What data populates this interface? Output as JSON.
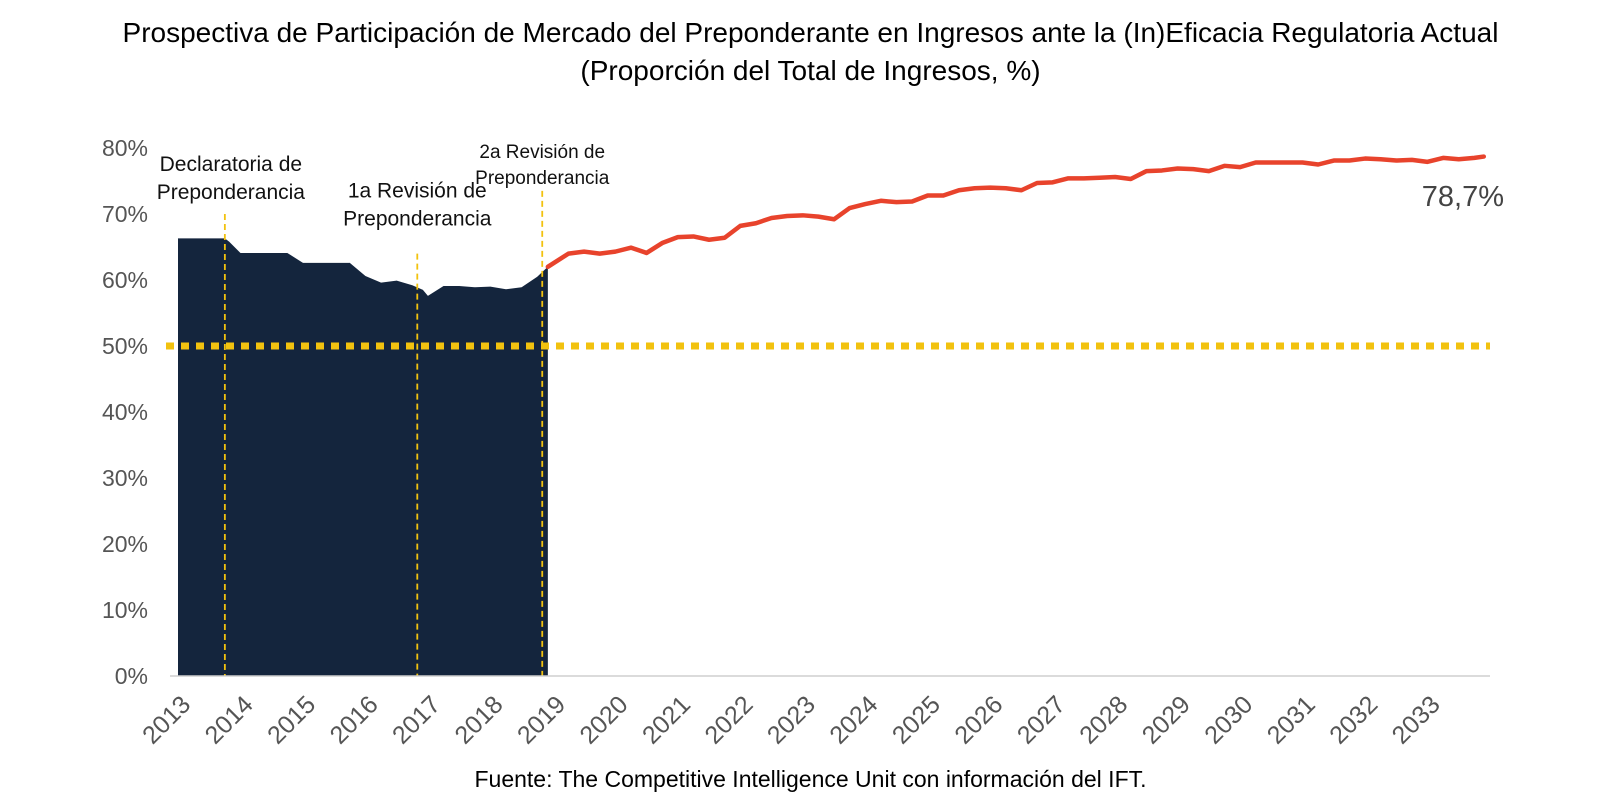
{
  "chart_data": {
    "type": "area",
    "title": "Prospectiva de Participación de Mercado del Preponderante en Ingresos ante la (In)Eficacia Regulatoria Actual",
    "subtitle": "(Proporción del Total de Ingresos, %)",
    "xlabel": "",
    "ylabel": "",
    "ylim": [
      0,
      80
    ],
    "xlim": [
      2013,
      2034
    ],
    "y_ticks": [
      "0%",
      "10%",
      "20%",
      "30%",
      "40%",
      "50%",
      "60%",
      "70%",
      "80%"
    ],
    "y_tick_values": [
      0,
      10,
      20,
      30,
      40,
      50,
      60,
      70,
      80
    ],
    "x_ticks": [
      "2013",
      "2014",
      "2015",
      "2016",
      "2017",
      "2018",
      "2019",
      "2020",
      "2021",
      "2022",
      "2023",
      "2024",
      "2025",
      "2026",
      "2027",
      "2028",
      "2029",
      "2030",
      "2031",
      "2032",
      "2033"
    ],
    "x_tick_values": [
      2013,
      2014,
      2015,
      2016,
      2017,
      2018,
      2019,
      2020,
      2021,
      2022,
      2023,
      2024,
      2025,
      2026,
      2027,
      2028,
      2029,
      2030,
      2031,
      2032,
      2033
    ],
    "grid": false,
    "legend": "none",
    "series": [
      {
        "kind": "area",
        "color": "#14253d",
        "x": [
          2013.0,
          2013.75,
          2013.82,
          2014.0,
          2014.75,
          2015.0,
          2015.75,
          2016.0,
          2016.25,
          2016.5,
          2016.75,
          2016.92,
          2017.0,
          2017.25,
          2017.5,
          2017.75,
          2018.0,
          2018.25,
          2018.5,
          2018.75,
          2018.92
        ],
        "y": [
          66.3,
          66.3,
          65.8,
          64.1,
          64.1,
          62.6,
          62.6,
          60.6,
          59.6,
          59.9,
          59.2,
          58.5,
          57.6,
          59.1,
          59.1,
          58.9,
          59.0,
          58.6,
          58.9,
          60.5,
          62.0
        ]
      },
      {
        "kind": "line",
        "color": "#e8432c",
        "x": [
          2018.92,
          2019.25,
          2019.5,
          2019.75,
          2020.0,
          2020.25,
          2020.5,
          2020.75,
          2021.0,
          2021.25,
          2021.5,
          2021.75,
          2022.0,
          2022.25,
          2022.5,
          2022.75,
          2023.0,
          2023.25,
          2023.5,
          2023.75,
          2024.0,
          2024.25,
          2024.5,
          2024.75,
          2025.0,
          2025.25,
          2025.5,
          2025.75,
          2026.0,
          2026.25,
          2026.5,
          2026.75,
          2027.0,
          2027.25,
          2027.5,
          2027.75,
          2028.0,
          2028.25,
          2028.5,
          2028.75,
          2029.0,
          2029.25,
          2029.5,
          2029.75,
          2030.0,
          2030.25,
          2030.5,
          2030.75,
          2031.0,
          2031.25,
          2031.5,
          2031.75,
          2032.0,
          2032.25,
          2032.5,
          2032.75,
          2033.0,
          2033.25,
          2033.5,
          2033.75,
          2033.9
        ],
        "y": [
          62.0,
          64.0,
          64.3,
          64.0,
          64.3,
          64.9,
          64.1,
          65.6,
          66.5,
          66.6,
          66.1,
          66.4,
          68.2,
          68.6,
          69.4,
          69.7,
          69.8,
          69.6,
          69.2,
          70.9,
          71.5,
          72.0,
          71.8,
          71.9,
          72.8,
          72.8,
          73.6,
          73.9,
          74.0,
          73.9,
          73.6,
          74.7,
          74.8,
          75.4,
          75.4,
          75.5,
          75.6,
          75.3,
          76.5,
          76.6,
          76.9,
          76.8,
          76.5,
          77.3,
          77.1,
          77.8,
          77.8,
          77.8,
          77.8,
          77.5,
          78.1,
          78.1,
          78.4,
          78.3,
          78.1,
          78.2,
          77.9,
          78.5,
          78.3,
          78.5,
          78.7
        ]
      },
      {
        "kind": "reference-line",
        "color": "#f2c20f",
        "value": 50
      }
    ],
    "end_label": "78,7%",
    "annotations": [
      {
        "text": "Declaratoria de Preponderancia",
        "x": 2013.75,
        "label_y": 76.5,
        "line_top": 70.0
      },
      {
        "text": "1a Revisión de Preponderancia",
        "x": 2016.83,
        "label_y": 72.5,
        "line_top": 64.0
      },
      {
        "text": "2a Revisión de Preponderancia",
        "x": 2018.83,
        "label_y": 78.5,
        "line_top": 73.5
      }
    ],
    "annotation_color": "#f2c20f"
  },
  "source": {
    "label": "Fuente",
    "text": ": The Competitive Intelligence Unit con información del IFT."
  }
}
